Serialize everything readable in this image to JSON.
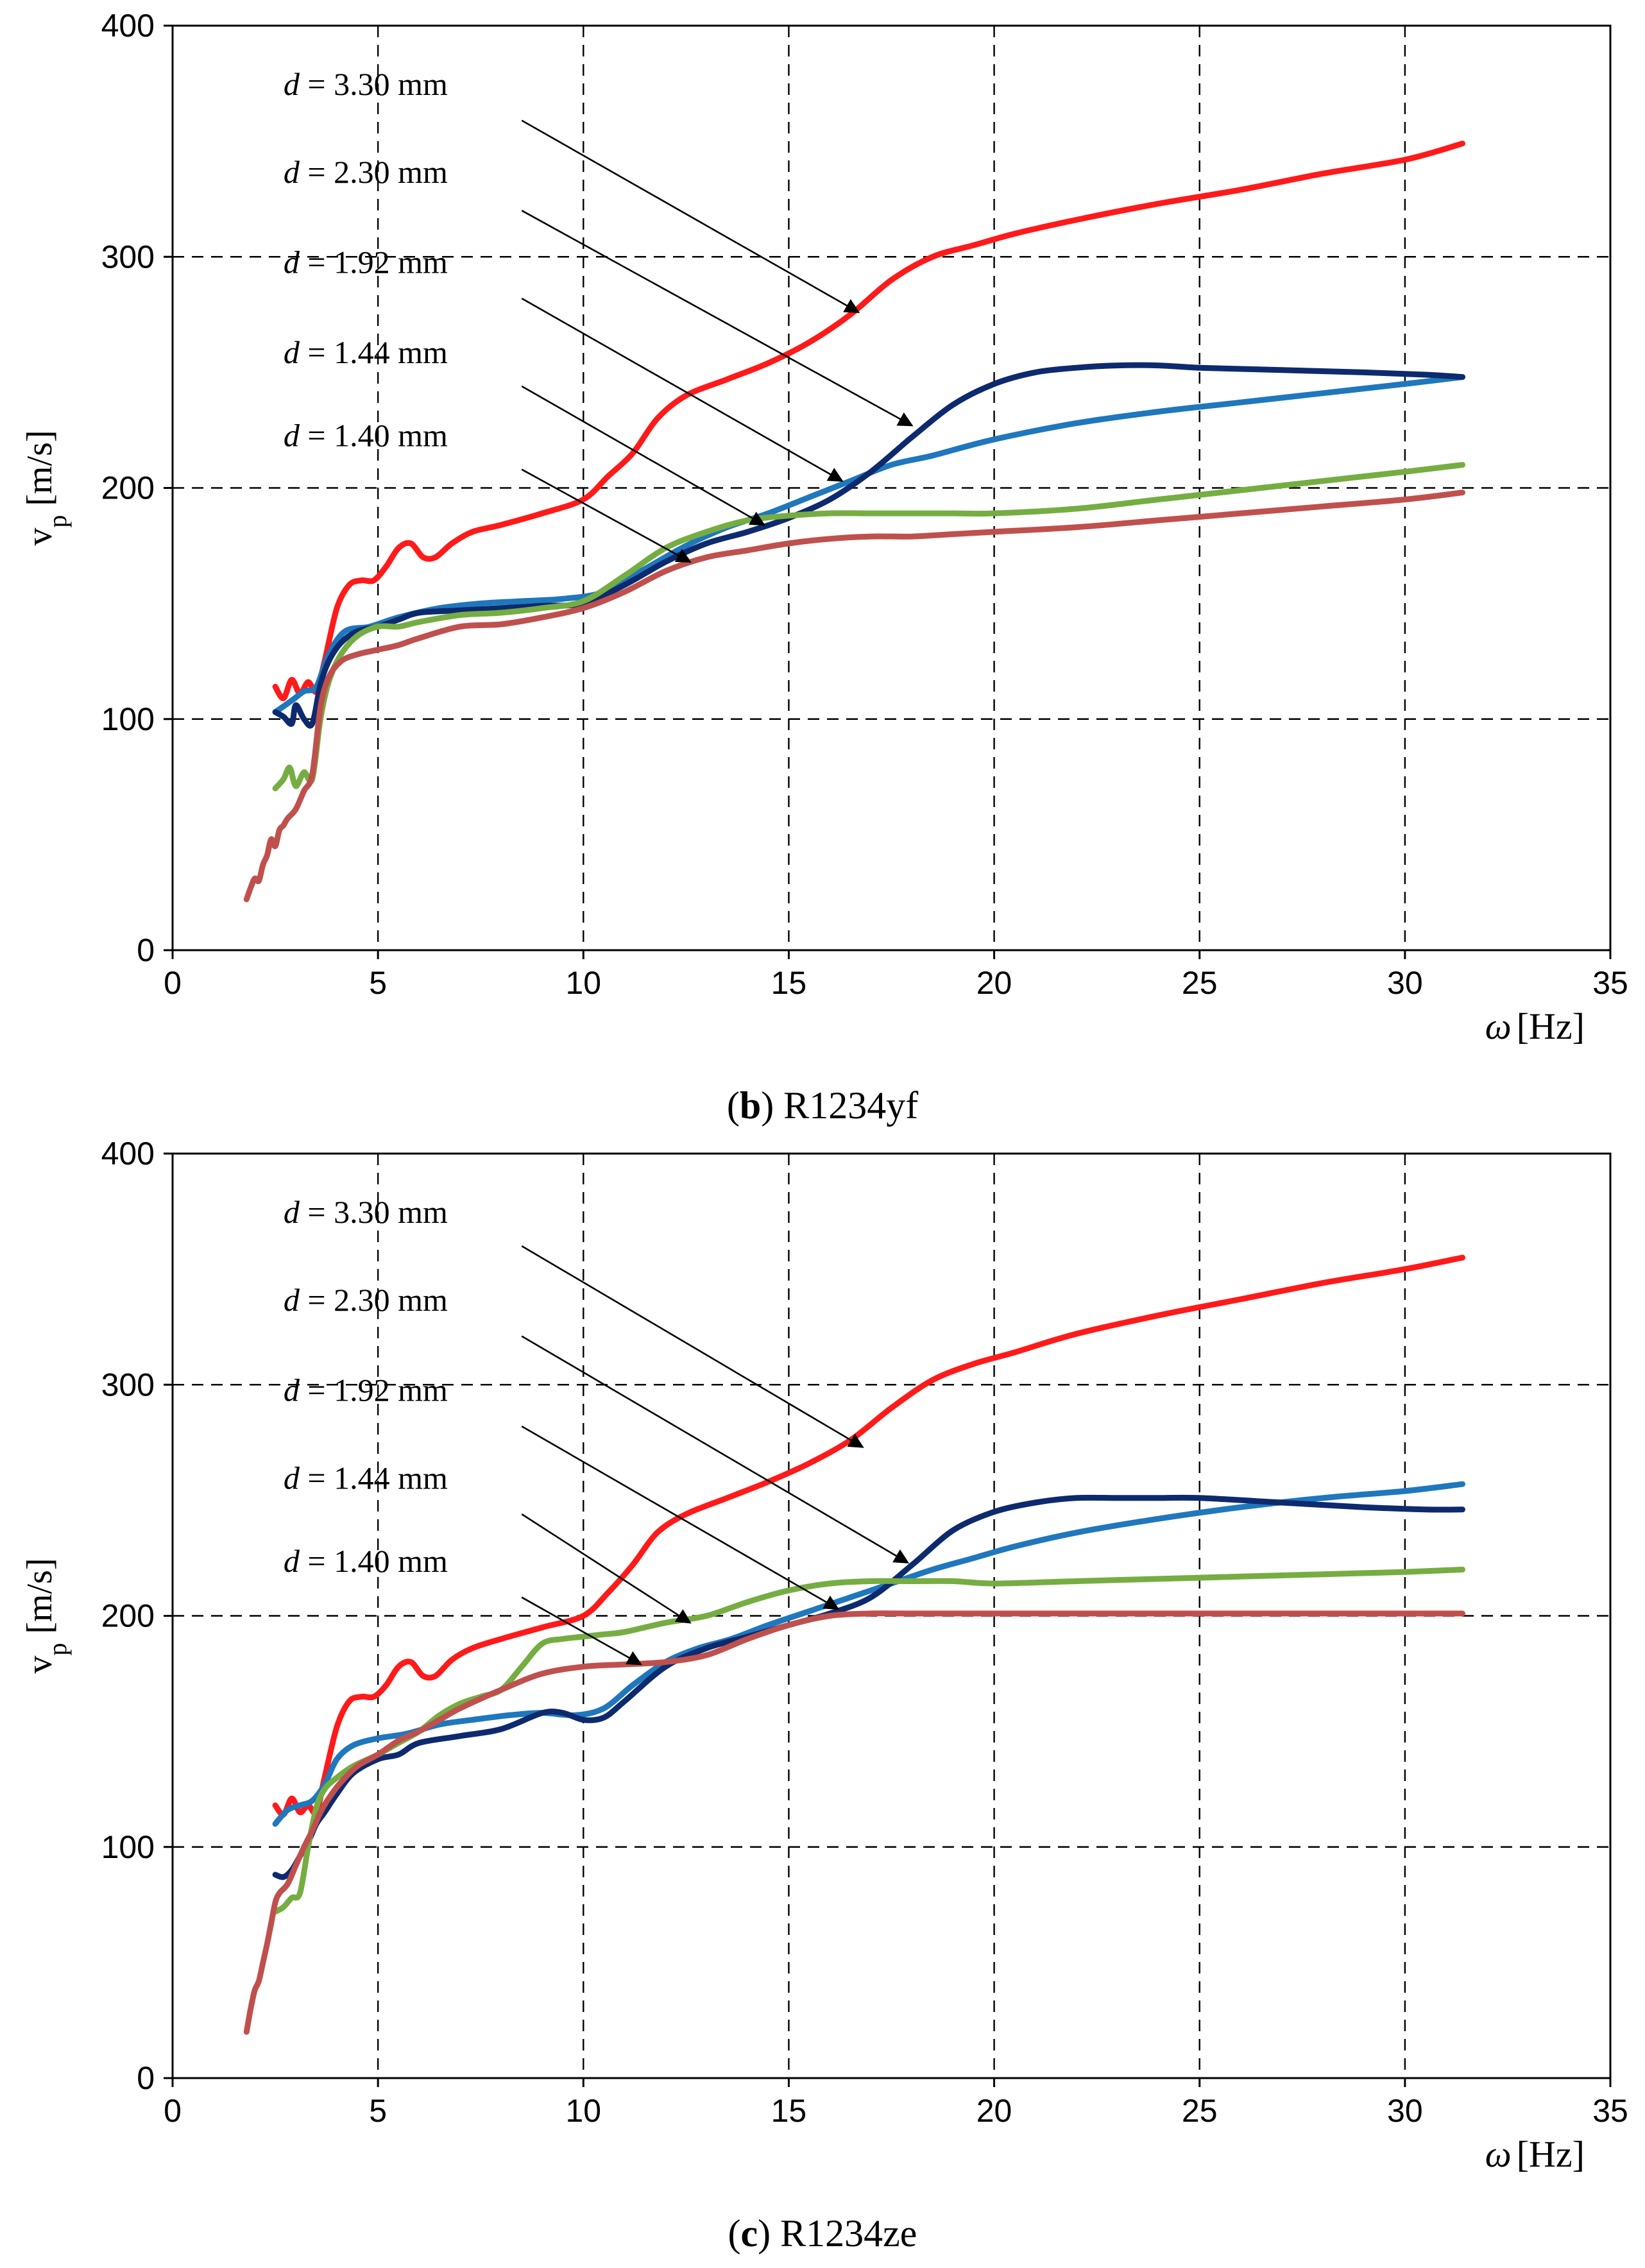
{
  "chart_data": [
    {
      "type": "line",
      "caption_letter": "b",
      "caption_text": "R1234yf",
      "xlabel_symbol": "ω",
      "xlabel_unit": "[Hz]",
      "ylabel_main": "v",
      "ylabel_sub": "p",
      "ylabel_unit": "[m/s]",
      "xlim": [
        0,
        35
      ],
      "ylim": [
        0,
        400
      ],
      "xticks": [
        0,
        5,
        10,
        15,
        20,
        25,
        30,
        35
      ],
      "yticks": [
        0,
        100,
        200,
        300,
        400
      ],
      "grid": true,
      "series": [
        {
          "name": "d = 3.30 mm",
          "label_prefix": "d",
          "label_value": " = 3.30 mm",
          "color": "#ff1a1a",
          "x": [
            2.5,
            2.7,
            2.9,
            3.1,
            3.3,
            3.5,
            3.7,
            4.0,
            4.3,
            4.6,
            4.9,
            5.2,
            5.5,
            5.8,
            6.1,
            6.4,
            6.8,
            7.3,
            8.0,
            9.0,
            10.0,
            10.6,
            11.2,
            11.8,
            12.5,
            13.5,
            14.5,
            15.5,
            16.5,
            17.5,
            18.5,
            19.5,
            20.5,
            22.0,
            24.0,
            26.0,
            28.0,
            30.0,
            31.4
          ],
          "y": [
            114,
            109,
            117,
            111,
            116,
            112,
            125,
            148,
            158,
            160,
            160,
            166,
            174,
            176,
            170,
            170,
            176,
            181,
            184,
            189,
            195,
            205,
            215,
            230,
            240,
            247,
            254,
            263,
            275,
            290,
            300,
            305,
            310,
            316,
            323,
            329,
            336,
            342,
            349
          ]
        },
        {
          "name": "d = 2.30 mm",
          "label_prefix": "d",
          "label_value": " = 2.30 mm",
          "color": "#1f77bd",
          "x": [
            2.5,
            2.9,
            3.2,
            3.5,
            3.8,
            4.2,
            4.8,
            5.5,
            6.5,
            7.5,
            8.5,
            9.5,
            10.5,
            11.5,
            12.5,
            13.5,
            14.5,
            15.5,
            16.5,
            17.5,
            18.5,
            20.0,
            22.0,
            24.0,
            26.0,
            28.0,
            30.0,
            31.4
          ],
          "y": [
            103,
            108,
            112,
            114,
            128,
            138,
            140,
            144,
            148,
            150,
            151,
            152,
            155,
            165,
            175,
            183,
            189,
            196,
            203,
            210,
            214,
            221,
            228,
            233,
            237,
            241,
            245,
            248
          ]
        },
        {
          "name": "d = 1.92 mm",
          "label_prefix": "d",
          "label_value": " = 1.92 mm",
          "color": "#0d2a6e",
          "x": [
            2.5,
            2.7,
            2.9,
            3.0,
            3.2,
            3.4,
            3.6,
            3.8,
            4.1,
            4.5,
            5.0,
            5.5,
            6.0,
            7.0,
            8.0,
            9.0,
            10.0,
            11.0,
            12.0,
            13.0,
            14.0,
            15.0,
            16.0,
            17.0,
            18.0,
            19.0,
            20.0,
            21.0,
            22.0,
            23.0,
            24.0,
            25.0,
            27.0,
            29.0,
            30.5,
            31.4
          ],
          "y": [
            103,
            101,
            98,
            106,
            100,
            98,
            115,
            125,
            133,
            138,
            140,
            143,
            146,
            147,
            148,
            149,
            150,
            158,
            168,
            176,
            181,
            187,
            195,
            207,
            222,
            236,
            245,
            250,
            252,
            253,
            253,
            252,
            251,
            250,
            249,
            248
          ]
        },
        {
          "name": "d = 1.44 mm",
          "label_prefix": "d",
          "label_value": " = 1.44 mm",
          "color": "#76ad42",
          "x": [
            2.5,
            2.7,
            2.85,
            3.0,
            3.2,
            3.4,
            3.6,
            3.8,
            4.1,
            4.5,
            5.0,
            5.5,
            6.0,
            7.0,
            8.0,
            9.0,
            10.0,
            11.0,
            12.0,
            13.0,
            14.0,
            15.0,
            16.0,
            17.0,
            18.0,
            19.0,
            20.0,
            22.0,
            24.0,
            26.0,
            28.0,
            30.0,
            31.4
          ],
          "y": [
            70,
            74,
            79,
            71,
            77,
            74,
            100,
            116,
            128,
            136,
            140,
            140,
            142,
            145,
            146,
            148,
            151,
            162,
            174,
            181,
            186,
            188,
            189,
            189,
            189,
            189,
            189,
            191,
            195,
            199,
            203,
            207,
            210
          ]
        },
        {
          "name": "d = 1.40 mm",
          "label_prefix": "d",
          "label_value": " = 1.40 mm",
          "color": "#c0504d",
          "x": [
            1.8,
            1.9,
            2.0,
            2.1,
            2.2,
            2.3,
            2.4,
            2.5,
            2.6,
            2.7,
            2.8,
            3.0,
            3.2,
            3.4,
            3.6,
            3.8,
            4.1,
            4.5,
            5.0,
            5.5,
            6.0,
            7.0,
            8.0,
            9.0,
            10.0,
            11.0,
            12.0,
            13.0,
            14.0,
            15.0,
            16.0,
            17.0,
            18.0,
            19.0,
            20.0,
            22.0,
            24.0,
            26.0,
            28.0,
            30.0,
            31.4
          ],
          "y": [
            22,
            27,
            31,
            30,
            37,
            41,
            48,
            45,
            52,
            54,
            57,
            61,
            69,
            76,
            105,
            118,
            125,
            128,
            130,
            132,
            135,
            140,
            141,
            144,
            148,
            155,
            164,
            170,
            173,
            176,
            178,
            179,
            179,
            180,
            181,
            183,
            186,
            189,
            192,
            195,
            198
          ]
        }
      ],
      "annotations": [
        {
          "series": 0,
          "text_pos": [
            2.7,
            370
          ],
          "line_start": [
            8.5,
            359
          ],
          "arrow_tip": [
            16.7,
            276
          ]
        },
        {
          "series": 1,
          "text_pos": [
            2.7,
            332
          ],
          "line_start": [
            8.5,
            320
          ],
          "arrow_tip": [
            18.0,
            227
          ]
        },
        {
          "series": 2,
          "text_pos": [
            2.7,
            293
          ],
          "line_start": [
            8.5,
            282
          ],
          "arrow_tip": [
            16.3,
            203
          ]
        },
        {
          "series": 3,
          "text_pos": [
            2.7,
            254
          ],
          "line_start": [
            8.5,
            244
          ],
          "arrow_tip": [
            14.4,
            184
          ]
        },
        {
          "series": 4,
          "text_pos": [
            2.7,
            218
          ],
          "line_start": [
            8.5,
            208
          ],
          "arrow_tip": [
            12.6,
            168
          ]
        }
      ]
    },
    {
      "type": "line",
      "caption_letter": "c",
      "caption_text": "R1234ze",
      "xlabel_symbol": "ω",
      "xlabel_unit": "[Hz]",
      "ylabel_main": "v",
      "ylabel_sub": "p",
      "ylabel_unit": "[m/s]",
      "xlim": [
        0,
        35
      ],
      "ylim": [
        0,
        400
      ],
      "xticks": [
        0,
        5,
        10,
        15,
        20,
        25,
        30,
        35
      ],
      "yticks": [
        0,
        100,
        200,
        300,
        400
      ],
      "grid": true,
      "series": [
        {
          "name": "d = 3.30 mm",
          "label_prefix": "d",
          "label_value": " = 3.30 mm",
          "color": "#ff1a1a",
          "x": [
            2.5,
            2.7,
            2.9,
            3.1,
            3.3,
            3.5,
            3.7,
            4.0,
            4.3,
            4.6,
            4.9,
            5.2,
            5.5,
            5.8,
            6.1,
            6.4,
            6.8,
            7.3,
            8.0,
            9.0,
            10.0,
            10.6,
            11.2,
            11.8,
            12.5,
            13.5,
            14.5,
            15.5,
            16.5,
            17.5,
            18.5,
            19.5,
            20.5,
            22.0,
            24.0,
            26.0,
            28.0,
            30.0,
            31.4
          ],
          "y": [
            118,
            114,
            121,
            115,
            118,
            115,
            130,
            152,
            163,
            165,
            165,
            170,
            178,
            180,
            174,
            174,
            181,
            186,
            190,
            195,
            200,
            210,
            222,
            236,
            244,
            251,
            258,
            266,
            276,
            290,
            302,
            309,
            314,
            322,
            330,
            337,
            344,
            350,
            355
          ]
        },
        {
          "name": "d = 2.30 mm",
          "label_prefix": "d",
          "label_value": " = 2.30 mm",
          "color": "#1f77bd",
          "x": [
            2.5,
            2.8,
            3.1,
            3.4,
            3.7,
            4.0,
            4.4,
            5.0,
            5.7,
            6.5,
            7.3,
            8.2,
            9.0,
            9.8,
            10.5,
            11.2,
            12.0,
            12.8,
            13.6,
            14.5,
            15.5,
            16.5,
            17.5,
            18.5,
            19.5,
            20.5,
            22.0,
            24.0,
            26.0,
            28.0,
            30.0,
            31.4
          ],
          "y": [
            110,
            116,
            118,
            120,
            127,
            138,
            144,
            147,
            149,
            153,
            155,
            157,
            158,
            157,
            160,
            170,
            180,
            186,
            190,
            196,
            202,
            208,
            214,
            220,
            225,
            230,
            236,
            242,
            247,
            251,
            254,
            257
          ]
        },
        {
          "name": "d = 1.92 mm",
          "label_prefix": "d",
          "label_value": " = 1.92 mm",
          "color": "#0d2a6e",
          "x": [
            2.5,
            2.7,
            2.9,
            3.1,
            3.3,
            3.5,
            3.7,
            4.0,
            4.4,
            5.0,
            5.5,
            6.0,
            7.0,
            8.0,
            9.0,
            9.5,
            10.0,
            10.5,
            11.0,
            12.0,
            13.0,
            14.0,
            15.0,
            16.0,
            17.0,
            18.0,
            19.0,
            20.0,
            21.0,
            22.0,
            23.0,
            24.0,
            25.0,
            27.0,
            29.0,
            30.5,
            31.4
          ],
          "y": [
            88,
            87,
            90,
            96,
            102,
            110,
            115,
            123,
            132,
            138,
            140,
            145,
            148,
            151,
            158,
            158,
            155,
            156,
            163,
            178,
            186,
            191,
            196,
            201,
            208,
            222,
            237,
            245,
            249,
            251,
            251,
            251,
            251,
            249,
            247,
            246,
            246
          ]
        },
        {
          "name": "d = 1.44 mm",
          "label_prefix": "d",
          "label_value": " = 1.44 mm",
          "color": "#76ad42",
          "x": [
            2.5,
            2.7,
            2.9,
            3.1,
            3.3,
            3.5,
            3.7,
            4.0,
            4.4,
            5.0,
            5.5,
            6.0,
            6.5,
            7.0,
            7.5,
            8.0,
            8.5,
            9.0,
            9.5,
            10.0,
            10.5,
            11.0,
            12.0,
            13.0,
            14.0,
            15.0,
            16.0,
            17.0,
            18.0,
            19.0,
            20.0,
            22.0,
            24.0,
            26.0,
            28.0,
            30.0,
            31.4
          ],
          "y": [
            72,
            74,
            78,
            80,
            100,
            117,
            125,
            130,
            135,
            140,
            145,
            150,
            157,
            162,
            165,
            168,
            178,
            188,
            190,
            191,
            192,
            193,
            197,
            200,
            206,
            211,
            214,
            215,
            215,
            215,
            214,
            215,
            216,
            217,
            218,
            219,
            220
          ]
        },
        {
          "name": "d = 1.40 mm",
          "label_prefix": "d",
          "label_value": " = 1.40 mm",
          "color": "#c0504d",
          "x": [
            1.8,
            1.9,
            2.0,
            2.1,
            2.2,
            2.3,
            2.4,
            2.5,
            2.6,
            2.8,
            3.0,
            3.2,
            3.4,
            3.6,
            3.8,
            4.1,
            4.5,
            5.0,
            5.5,
            6.0,
            6.5,
            7.0,
            8.0,
            9.0,
            10.0,
            11.0,
            12.0,
            13.0,
            14.0,
            15.0,
            16.0,
            17.0,
            18.0,
            20.0,
            22.0,
            24.0,
            26.0,
            28.0,
            30.0,
            31.4
          ],
          "y": [
            20,
            30,
            38,
            42,
            50,
            58,
            67,
            76,
            80,
            84,
            92,
            100,
            107,
            115,
            121,
            128,
            135,
            140,
            146,
            150,
            155,
            160,
            168,
            175,
            178,
            179,
            180,
            183,
            190,
            196,
            200,
            201,
            201,
            201,
            201,
            201,
            201,
            201,
            201,
            201
          ]
        }
      ],
      "annotations": [
        {
          "series": 0,
          "text_pos": [
            2.7,
            370
          ],
          "line_start": [
            8.5,
            360
          ],
          "arrow_tip": [
            16.8,
            273
          ]
        },
        {
          "series": 1,
          "text_pos": [
            2.7,
            332
          ],
          "line_start": [
            8.5,
            321
          ],
          "arrow_tip": [
            17.9,
            223
          ]
        },
        {
          "series": 2,
          "text_pos": [
            2.7,
            293
          ],
          "line_start": [
            8.5,
            282
          ],
          "arrow_tip": [
            16.2,
            203
          ]
        },
        {
          "series": 3,
          "text_pos": [
            2.7,
            255
          ],
          "line_start": [
            8.5,
            244
          ],
          "arrow_tip": [
            12.6,
            197
          ]
        },
        {
          "series": 4,
          "text_pos": [
            2.7,
            219
          ],
          "line_start": [
            8.5,
            208
          ],
          "arrow_tip": [
            11.4,
            179
          ]
        }
      ]
    }
  ]
}
